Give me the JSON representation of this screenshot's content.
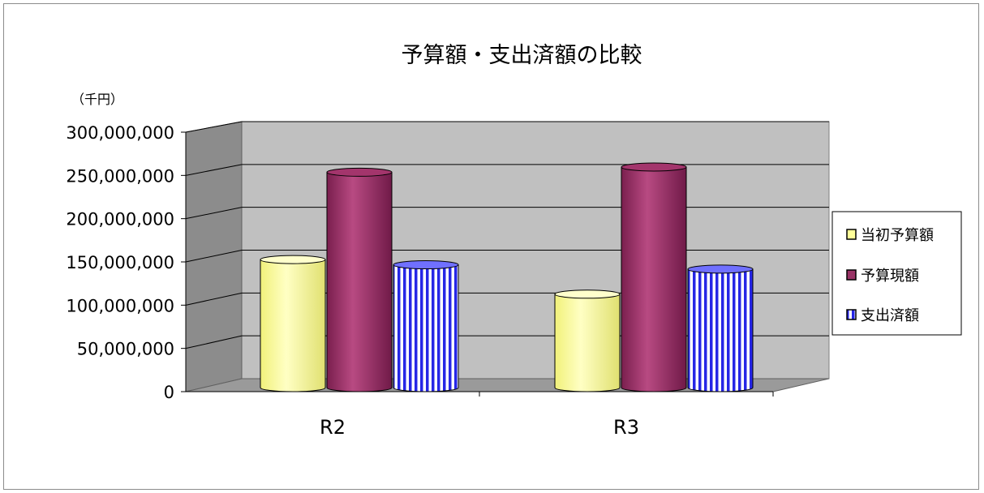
{
  "chart_data": {
    "type": "bar",
    "title": "予算額・支出済額の比較",
    "unit_label": "（千円）",
    "categories": [
      "R2",
      "R3"
    ],
    "ylim": [
      0,
      300000000
    ],
    "yticks": [
      0,
      50000000,
      100000000,
      150000000,
      200000000,
      250000000,
      300000000
    ],
    "ytick_labels": [
      "0",
      "50,000,000",
      "100,000,000",
      "150,000,000",
      "200,000,000",
      "250,000,000",
      "300,000,000"
    ],
    "grid": true,
    "legend_position": "right",
    "series": [
      {
        "name": "当初予算額",
        "values": [
          148000000,
          108000000
        ],
        "color": "#ffff99",
        "pattern": "solid"
      },
      {
        "name": "予算現額",
        "values": [
          249000000,
          255000000
        ],
        "color": "#993366",
        "pattern": "solid"
      },
      {
        "name": "支出済額",
        "values": [
          142000000,
          137000000
        ],
        "color": "#3333ff",
        "pattern": "vertical-stripes"
      }
    ]
  }
}
